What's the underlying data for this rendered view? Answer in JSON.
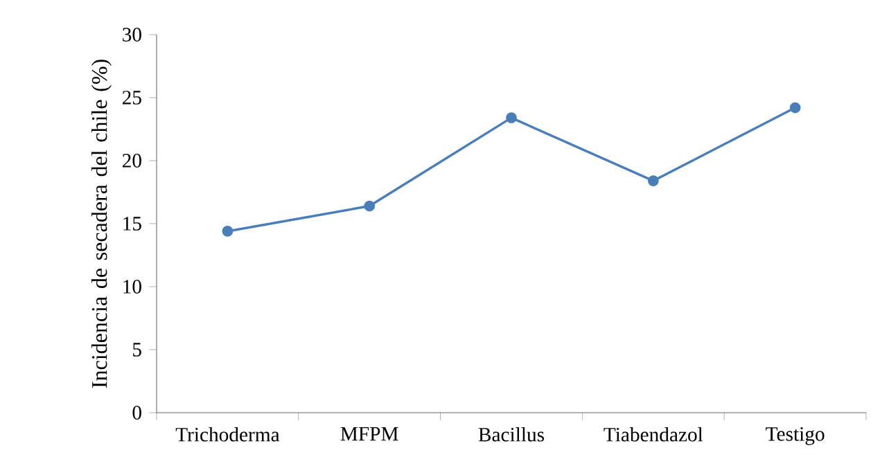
{
  "chart_data": {
    "type": "line",
    "ylabel": "Incidencia de secadera del chile (%)",
    "categories": [
      "Trichoderma",
      "MFPM",
      "Bacillus",
      "Tiabendazol",
      "Testigo"
    ],
    "series": [
      {
        "color": "#4a7ebb",
        "values": [
          14.4,
          16.4,
          23.4,
          18.4,
          24.2
        ]
      }
    ],
    "ylim": [
      0,
      30
    ],
    "yticks": [
      0,
      5,
      10,
      15,
      20,
      25,
      30
    ],
    "marker": "circle",
    "line_style": "solid"
  }
}
